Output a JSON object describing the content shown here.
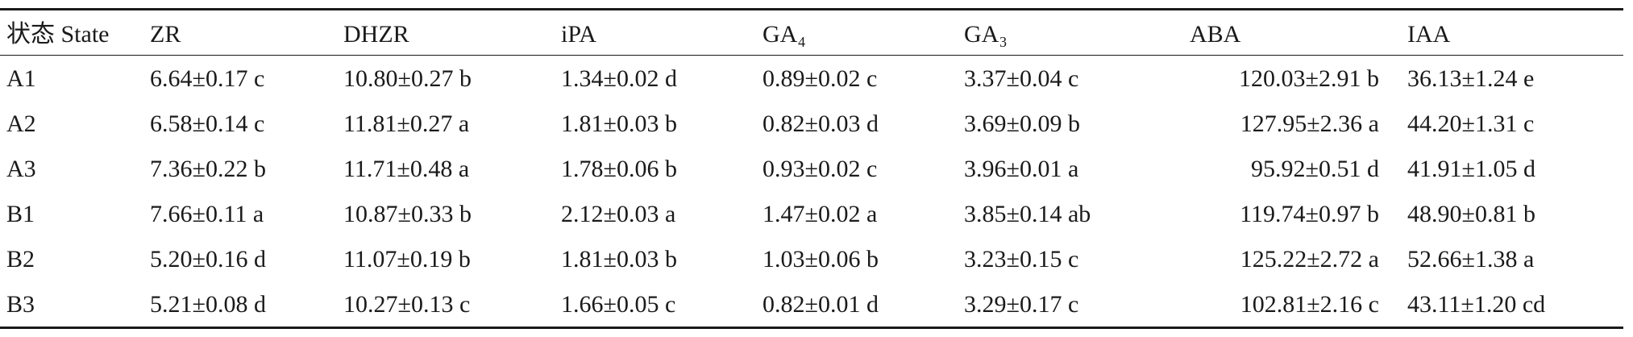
{
  "table": {
    "headers": [
      "状态 State",
      "ZR",
      "DHZR",
      "iPA",
      "GA₄",
      "GA₃",
      "ABA",
      "IAA"
    ],
    "rows": [
      [
        "A1",
        "6.64±0.17 c",
        "10.80±0.27 b",
        "1.34±0.02 d",
        "0.89±0.02 c",
        "3.37±0.04 c",
        "120.03±2.91 b",
        "36.13±1.24 e"
      ],
      [
        "A2",
        "6.58±0.14 c",
        "11.81±0.27 a",
        "1.81±0.03 b",
        "0.82±0.03 d",
        "3.69±0.09 b",
        "127.95±2.36 a",
        "44.20±1.31 c"
      ],
      [
        "A3",
        "7.36±0.22 b",
        "11.71±0.48 a",
        "1.78±0.06 b",
        "0.93±0.02 c",
        "3.96±0.01 a",
        "95.92±0.51 d",
        "41.91±1.05 d"
      ],
      [
        "B1",
        "7.66±0.11 a",
        "10.87±0.33 b",
        "2.12±0.03 a",
        "1.47±0.02 a",
        "3.85±0.14 ab",
        "119.74±0.97 b",
        "48.90±0.81 b"
      ],
      [
        "B2",
        "5.20±0.16 d",
        "11.07±0.19 b",
        "1.81±0.03 b",
        "1.03±0.06 b",
        "3.23±0.15 c",
        "125.22±2.72 a",
        "52.66±1.38 a"
      ],
      [
        "B3",
        "5.21±0.08 d",
        "10.27±0.13 c",
        "1.66±0.05 c",
        "0.82±0.01 d",
        "3.29±0.17 c",
        "102.81±2.16 c",
        "43.11±1.20 cd"
      ]
    ]
  }
}
